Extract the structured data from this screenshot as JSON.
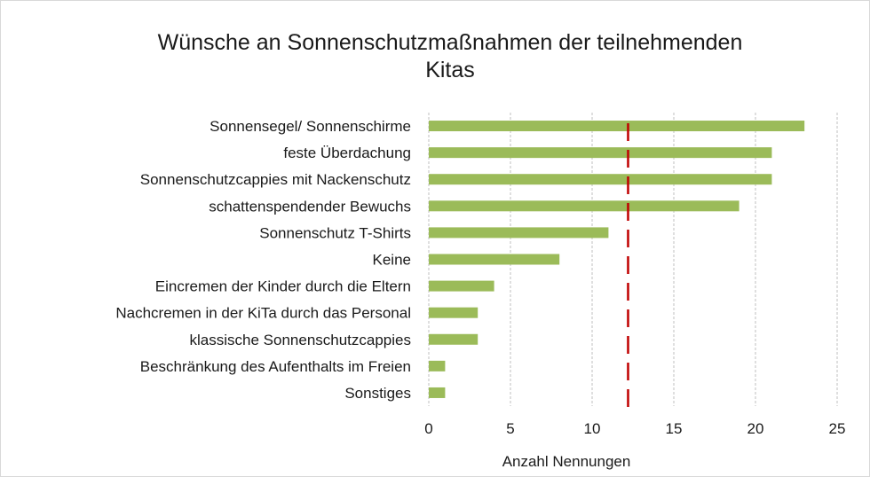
{
  "chart_data": {
    "type": "bar",
    "orientation": "horizontal",
    "title_lines": [
      "Wünsche an Sonnenschutzmaßnahmen der teilnehmenden",
      "Kitas"
    ],
    "categories": [
      "Sonnensegel/ Sonnenschirme",
      "feste Überdachung",
      "Sonnenschutzcappies mit Nackenschutz",
      "schattenspendender Bewuchs",
      "Sonnenschutz T-Shirts",
      "Keine",
      "Eincremen der Kinder durch die Eltern",
      "Nachcremen in der KiTa durch das Personal",
      "klassische Sonnenschutzcappies",
      "Beschränkung des Aufenthalts im Freien",
      "Sonstiges"
    ],
    "values": [
      23,
      21,
      21,
      19,
      11,
      8,
      4,
      3,
      3,
      1,
      1
    ],
    "xlabel": "Anzahl Nennungen",
    "ylabel": "",
    "xlim": [
      0,
      25
    ],
    "x_ticks": [
      "0",
      "5",
      "10",
      "15",
      "20",
      "25"
    ],
    "reference_line": {
      "value": 12.2,
      "style": "dashed",
      "color": "#c00000"
    },
    "bar_color": "#9bbb59",
    "grid": "vertical",
    "legend": "none"
  }
}
